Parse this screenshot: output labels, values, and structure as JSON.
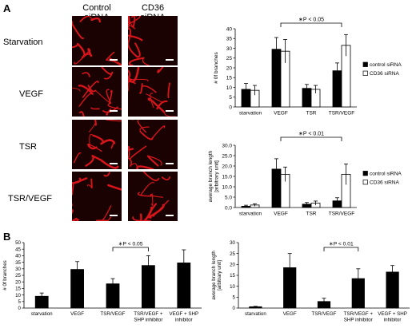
{
  "panel_a": {
    "letter": "A",
    "column_headers": [
      "Control siRNA",
      "CD36 siRNA"
    ],
    "row_labels": [
      "Starvation",
      "VEGF",
      "TSR",
      "TSR/VEGF"
    ]
  },
  "panel_b": {
    "letter": "B"
  },
  "colors": {
    "control": "#000000",
    "cd36": "#ffffff",
    "vessel": "#d8151b",
    "micro_bg": "#1a0202"
  },
  "chart_data": [
    {
      "id": "a-branches",
      "type": "bar",
      "categories": [
        "starvation",
        "VEGF",
        "TSR",
        "TSR/VEGF"
      ],
      "series": [
        {
          "name": "control siRNA",
          "color": "#000000",
          "values": [
            9,
            29.5,
            9.5,
            18.5
          ],
          "errors": [
            3,
            6,
            2,
            4
          ]
        },
        {
          "name": "CD36 siRNA",
          "color": "#ffffff",
          "values": [
            8.5,
            28.5,
            9,
            31.5
          ],
          "errors": [
            2.5,
            6,
            2,
            5.5
          ]
        }
      ],
      "ylabel": "# 0f branches",
      "ylim": [
        0,
        40
      ],
      "yticks": [
        0,
        5,
        10,
        15,
        20,
        25,
        30,
        35,
        40
      ],
      "annotation": {
        "text": "∗P < 0.05",
        "from_category": 1,
        "to_category": 3
      },
      "legend": "right"
    },
    {
      "id": "a-length",
      "type": "bar",
      "categories": [
        "starvation",
        "VEGF",
        "TSR",
        "TSR/VEGF"
      ],
      "series": [
        {
          "name": "control siRNA",
          "color": "#000000",
          "values": [
            0.6,
            18.5,
            1.6,
            3.2
          ],
          "errors": [
            0.5,
            5,
            0.8,
            1.5
          ]
        },
        {
          "name": "CD36 siRNA",
          "color": "#ffffff",
          "values": [
            1.2,
            16,
            2.1,
            16
          ],
          "errors": [
            0.6,
            3.5,
            1,
            5
          ]
        }
      ],
      "ylabel": "average branch length\n[arbitrary unit]",
      "ylim": [
        0,
        30
      ],
      "yticks": [
        0.0,
        5.0,
        10.0,
        15.0,
        20.0,
        25.0,
        30.0
      ],
      "ytick_decimals": 1,
      "annotation": {
        "text": "∗P < 0.01",
        "from_category": 1,
        "to_category": 3
      },
      "legend": "right"
    },
    {
      "id": "b-branches",
      "type": "bar",
      "categories": [
        "starvation",
        "VEGF",
        "TSR/VEGF",
        "TSR/VEGF +\nSHP inhibitor",
        "VEGF + SHP\ninhibitor"
      ],
      "series": [
        {
          "name": "",
          "color": "#000000",
          "values": [
            9,
            29.5,
            18.5,
            32.5,
            34.5
          ],
          "errors": [
            2.5,
            6,
            4,
            7.5,
            10
          ]
        }
      ],
      "ylabel": "# 0f branches",
      "ylim": [
        0,
        50
      ],
      "yticks": [
        0,
        5,
        10,
        15,
        20,
        25,
        30,
        35,
        40,
        45,
        50
      ],
      "annotation": {
        "text": "∗P < 0.05",
        "from_category": 2,
        "to_category": 3
      }
    },
    {
      "id": "b-length",
      "type": "bar",
      "categories": [
        "starvation",
        "VEGF",
        "TSR/VEGF",
        "TSR/VEGF +\nSHP inhibitor",
        "VEGF + SHP\ninhibitor"
      ],
      "series": [
        {
          "name": "",
          "color": "#000000",
          "values": [
            0.6,
            18.5,
            3,
            13.5,
            16.5
          ],
          "errors": [
            0.2,
            6.5,
            1.5,
            4.5,
            3
          ]
        }
      ],
      "ylabel": "average branch length\n[arbitrary unit]",
      "ylim": [
        0,
        30
      ],
      "yticks": [
        0,
        5,
        10,
        15,
        20,
        25,
        30
      ],
      "annotation": {
        "text": "∗P < 0.01",
        "from_category": 2,
        "to_category": 3
      }
    }
  ]
}
